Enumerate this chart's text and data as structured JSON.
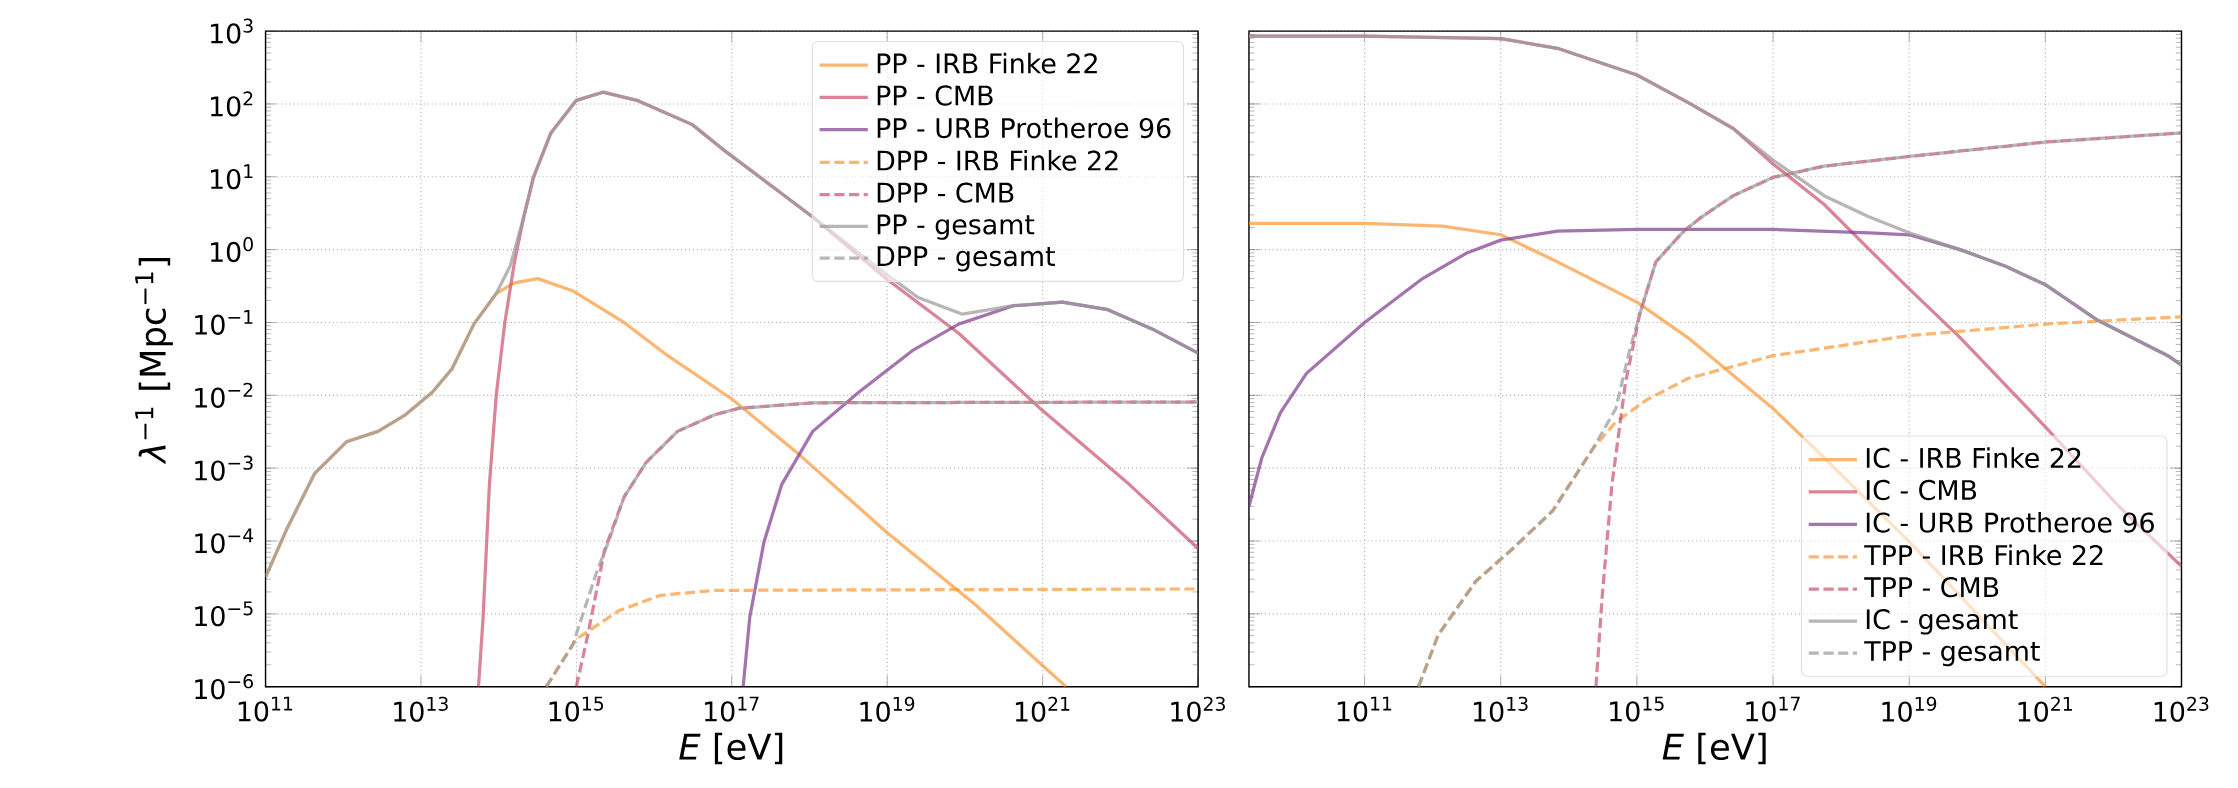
{
  "chart_data": [
    {
      "type": "line",
      "xlabel": "*E* [eV]",
      "ylabel": "*λ*$^{−1}$ [Mpc$^{−1}$]",
      "log": "xy",
      "grid": true,
      "legend": "top right",
      "xlim": [
        100000000000.0,
        1e+23
      ],
      "ylim": [
        1e-06,
        1000
      ],
      "xticks": [
        {
          "value": 100000000000.0,
          "label": "10$^{11}$"
        },
        {
          "value": 10000000000000.0,
          "label": "10$^{13}$"
        },
        {
          "value": 1000000000000000.0,
          "label": "10$^{15}$"
        },
        {
          "value": 1e+17,
          "label": "10$^{17}$"
        },
        {
          "value": 1e+19,
          "label": "10$^{19}$"
        },
        {
          "value": 1e+21,
          "label": "10$^{21}$"
        },
        {
          "value": 1e+23,
          "label": "10$^{23}$"
        }
      ],
      "yticks": [
        {
          "value": 1e-06,
          "label": "10$^{−6}$"
        },
        {
          "value": 1e-05,
          "label": "10$^{−5}$"
        },
        {
          "value": 0.0001,
          "label": "10$^{−4}$"
        },
        {
          "value": 0.001,
          "label": "10$^{−3}$"
        },
        {
          "value": 0.01,
          "label": "10$^{−2}$"
        },
        {
          "value": 0.1,
          "label": "10$^{−1}$"
        },
        {
          "value": 1,
          "label": "10$^{0}$"
        },
        {
          "value": 10,
          "label": "10$^{1}$"
        },
        {
          "value": 100,
          "label": "10$^{2}$"
        },
        {
          "value": 1000,
          "label": "10$^{3}$"
        }
      ],
      "series": [
        {
          "name": "PP - IRB Finke 22",
          "color": "#f99b3c",
          "line_style": "solid",
          "x": [
            100000000000.0,
            190000000000.0,
            430000000000.0,
            1100000000000.0,
            2800000000000.0,
            6300000000000.0,
            14000000000000.0,
            25000000000000.0,
            48000000000000.0,
            93000000000000.0,
            160000000000000.0,
            320000000000000.0,
            910000000000000.0,
            4100000000000000.0,
            1.5e+16,
            1e+17,
            6.6e+17,
            1e+19,
            1.4e+20,
            2e+21
          ],
          "values": [
            3.2e-05,
            0.00015,
            0.00085,
            0.0023,
            0.0032,
            0.0054,
            0.011,
            0.023,
            0.095,
            0.25,
            0.35,
            0.4,
            0.27,
            0.1,
            0.035,
            0.0089,
            0.0017,
            0.00013,
            1.3e-05,
            1e-06
          ]
        },
        {
          "name": "PP - CMB",
          "color": "#cc5470",
          "line_style": "solid",
          "x": [
            55000000000000.0,
            63000000000000.0,
            76000000000000.0,
            93000000000000.0,
            120000000000000.0,
            160000000000000.0,
            210000000000000.0,
            280000000000000.0,
            470000000000000.0,
            1000000000000000.0,
            2200000000000000.0,
            6000000000000000.0,
            3.1e+16,
            7.6e+16,
            1.1e+18,
            1e+19,
            8.3e+19,
            9.3e+20,
            1.3e+22,
            1e+23
          ],
          "values": [
            1e-06,
            8.9e-06,
            0.0006,
            0.01,
            0.1,
            0.68,
            2.8,
            9.8,
            40,
            112,
            145,
            112,
            52,
            24,
            2.8,
            0.39,
            0.071,
            0.0066,
            0.0006,
            7.9e-05
          ]
        },
        {
          "name": "PP - URB Protheroe 96",
          "color": "#813e8f",
          "line_style": "solid",
          "x": [
            1.4e+17,
            1.7e+17,
            2.6e+17,
            4.4e+17,
            1.1e+18,
            4.3e+18,
            2.1e+19,
            8.3e+19,
            4.2e+20,
            1.8e+21,
            6.9e+21,
            2.6e+22,
            1e+23
          ],
          "values": [
            1e-06,
            8.9e-06,
            9.8e-05,
            0.0006,
            0.0032,
            0.011,
            0.041,
            0.095,
            0.17,
            0.19,
            0.15,
            0.081,
            0.038
          ]
        },
        {
          "name": "DPP - IRB Finke 22",
          "color": "#f99b3c",
          "line_style": "dashed",
          "x": [
            410000000000000.0,
            1000000000000000.0,
            3500000000000000.0,
            1.2e+16,
            6e+16,
            1e+23
          ],
          "values": [
            1e-06,
            4.5e-06,
            1.1e-05,
            1.8e-05,
            2.1e-05,
            2.2e-05
          ]
        },
        {
          "name": "DPP - CMB",
          "color": "#cc5470",
          "line_style": "dashed",
          "x": [
            1000000000000000.0,
            1400000000000000.0,
            2300000000000000.0,
            4100000000000000.0,
            7900000000000000.0,
            2e+16,
            6e+16,
            1.2e+17,
            1.1e+18,
            1e+23
          ],
          "values": [
            1e-06,
            5.1e-06,
            7.4e-05,
            0.0004,
            0.0012,
            0.0032,
            0.0054,
            0.0066,
            0.0079,
            0.0081
          ]
        },
        {
          "name": "PP - gesamt",
          "color": "#9a9a9a",
          "line_style": "solid",
          "x": [
            100000000000.0,
            190000000000.0,
            430000000000.0,
            1100000000000.0,
            2800000000000.0,
            6300000000000.0,
            14000000000000.0,
            25000000000000.0,
            48000000000000.0,
            93000000000000.0,
            140000000000000.0,
            210000000000000.0,
            280000000000000.0,
            470000000000000.0,
            1000000000000000.0,
            2200000000000000.0,
            6000000000000000.0,
            3.1e+16,
            7.6e+16,
            1.1e+18,
            1e+19,
            2.5e+19,
            9.3e+19,
            4.2e+20,
            1.8e+21,
            6.9e+21,
            2.6e+22,
            1e+23
          ],
          "values": [
            3.2e-05,
            0.00015,
            0.00085,
            0.0023,
            0.0032,
            0.0054,
            0.011,
            0.023,
            0.095,
            0.25,
            0.59,
            2.8,
            9.8,
            40,
            112,
            145,
            112,
            52,
            24,
            2.8,
            0.45,
            0.22,
            0.13,
            0.17,
            0.19,
            0.15,
            0.081,
            0.038
          ]
        },
        {
          "name": "DPP - gesamt",
          "color": "#9a9a9a",
          "line_style": "dashed",
          "x": [
            410000000000000.0,
            910000000000000.0,
            1800000000000000.0,
            2700000000000000.0,
            4100000000000000.0,
            7900000000000000.0,
            2e+16,
            6e+16,
            1.2e+17,
            1.1e+18,
            1e+23
          ],
          "values": [
            1e-06,
            3.9e-06,
            3.6e-05,
            0.00011,
            0.0004,
            0.0012,
            0.0032,
            0.0054,
            0.0066,
            0.0079,
            0.0081
          ]
        }
      ]
    },
    {
      "type": "line",
      "xlabel": "*E* [eV]",
      "log": "xy",
      "grid": true,
      "legend": "bottom right",
      "tick_labels": "x",
      "xlim": [
        2000000000.0,
        1e+23
      ],
      "ylim": [
        1e-06,
        1000
      ],
      "xticks": [
        {
          "value": 100000000000.0,
          "label": "10$^{11}$"
        },
        {
          "value": 10000000000000.0,
          "label": "10$^{13}$"
        },
        {
          "value": 1000000000000000.0,
          "label": "10$^{15}$"
        },
        {
          "value": 1e+17,
          "label": "10$^{17}$"
        },
        {
          "value": 1e+19,
          "label": "10$^{19}$"
        },
        {
          "value": 1e+21,
          "label": "10$^{21}$"
        },
        {
          "value": 1e+23,
          "label": "10$^{23}$"
        }
      ],
      "yticks": [
        {
          "value": 1e-06,
          "label": null
        },
        {
          "value": 1e-05,
          "label": null
        },
        {
          "value": 0.0001,
          "label": null
        },
        {
          "value": 0.001,
          "label": null
        },
        {
          "value": 0.01,
          "label": null
        },
        {
          "value": 0.1,
          "label": null
        },
        {
          "value": 1,
          "label": null
        },
        {
          "value": 10,
          "label": null
        },
        {
          "value": 100,
          "label": null
        },
        {
          "value": 1000,
          "label": null
        }
      ],
      "series": [
        {
          "name": "IC - IRB Finke 22",
          "color": "#f99b3c",
          "line_style": "solid",
          "x": [
            2000000000.0,
            100000000000.0,
            1400000000000.0,
            10000000000000.0,
            68000000000000.0,
            1000000000000000.0,
            5600000000000000.0,
            1e+17,
            5.6e+17,
            1e+19,
            1e+21
          ],
          "values": [
            2.3,
            2.3,
            2.1,
            1.6,
            0.68,
            0.19,
            0.062,
            0.0066,
            0.0014,
            9.8e-05,
            1e-06
          ]
        },
        {
          "name": "IC - CMB",
          "color": "#cc5470",
          "line_style": "solid",
          "x": [
            2000000000.0,
            100000000000.0,
            10000000000000.0,
            68000000000000.0,
            1000000000000000.0,
            5600000000000000.0,
            2.6e+16,
            1e+17,
            5.6e+17,
            2.6e+18,
            1e+19,
            5.6e+19,
            1e+21,
            1.2e+22,
            1e+23
          ],
          "values": [
            850,
            850,
            790,
            580,
            250,
            105,
            46,
            15,
            4.2,
            1,
            0.29,
            0.062,
            0.0037,
            0.0003,
            4.5e-05
          ]
        },
        {
          "name": "IC - URB Protheroe 96",
          "color": "#813e8f",
          "line_style": "solid",
          "x": [
            2000000000.0,
            3100000000.0,
            5800000000.0,
            14000000000.0,
            100000000000.0,
            680000000000.0,
            3100000000000.0,
            10000000000000.0,
            68000000000000.0,
            1000000000000000.0,
            1e+17,
            2.6e+18,
            1e+19,
            5.6e+19,
            2.6e+20,
            1e+21,
            5.6e+21,
            6.3e+22,
            1e+23
          ],
          "values": [
            0.0003,
            0.0014,
            0.0058,
            0.02,
            0.1,
            0.39,
            0.89,
            1.35,
            1.8,
            1.9,
            1.9,
            1.7,
            1.6,
            1,
            0.59,
            0.33,
            0.11,
            0.035,
            0.026
          ]
        },
        {
          "name": "TPP - IRB Finke 22",
          "color": "#f99b3c",
          "line_style": "dashed",
          "x": [
            620000000000.0,
            1200000000000.0,
            4300000000000.0,
            14000000000000.0,
            58000000000000.0,
            230000000000000.0,
            490000000000000.0,
            1400000000000000.0,
            5600000000000000.0,
            1e+17,
            1e+19,
            1e+21,
            1e+23
          ],
          "values": [
            1e-06,
            5.1e-06,
            2.8e-05,
            7.4e-05,
            0.00026,
            0.0019,
            0.0043,
            0.0087,
            0.017,
            0.035,
            0.066,
            0.095,
            0.12
          ]
        },
        {
          "name": "TPP - CMB",
          "color": "#cc5470",
          "line_style": "dashed",
          "x": [
            250000000000000.0,
            310000000000000.0,
            430000000000000.0,
            680000000000000.0,
            1100000000000000.0,
            1900000000000000.0,
            4900000000000000.0,
            8900000000000000.0,
            2.6e+16,
            1e+17,
            5.6e+17,
            1e+19,
            1e+21,
            1e+23
          ],
          "values": [
            1e-06,
            1.8e-05,
            0.0006,
            0.015,
            0.13,
            0.68,
            1.8,
            2.8,
            5.5,
            9.8,
            14,
            19,
            30,
            40
          ]
        },
        {
          "name": "IC - gesamt",
          "color": "#9a9a9a",
          "line_style": "solid",
          "x": [
            2000000000.0,
            100000000000.0,
            10000000000000.0,
            68000000000000.0,
            1000000000000000.0,
            5600000000000000.0,
            2.6e+16,
            1e+17,
            5.6e+17,
            2.6e+18,
            1e+19,
            5.6e+19,
            2.6e+20,
            1e+21,
            5.6e+21,
            6.3e+22,
            1e+23
          ],
          "values": [
            850,
            850,
            790,
            580,
            250,
            105,
            46,
            17,
            5.5,
            2.8,
            1.7,
            1,
            0.59,
            0.33,
            0.11,
            0.035,
            0.026
          ]
        },
        {
          "name": "TPP - gesamt",
          "color": "#9a9a9a",
          "line_style": "dashed",
          "x": [
            620000000000.0,
            1200000000000.0,
            4300000000000.0,
            14000000000000.0,
            58000000000000.0,
            230000000000000.0,
            490000000000000.0,
            780000000000000.0,
            1100000000000000.0,
            1900000000000000.0,
            4900000000000000.0,
            8900000000000000.0,
            2.6e+16,
            1e+17,
            5.6e+17,
            1e+19,
            1e+21,
            1e+23
          ],
          "values": [
            1e-06,
            5.1e-06,
            2.8e-05,
            7.4e-05,
            0.00026,
            0.0019,
            0.0066,
            0.041,
            0.13,
            0.68,
            1.8,
            2.8,
            5.5,
            9.8,
            14,
            19,
            30,
            40
          ]
        }
      ]
    }
  ]
}
